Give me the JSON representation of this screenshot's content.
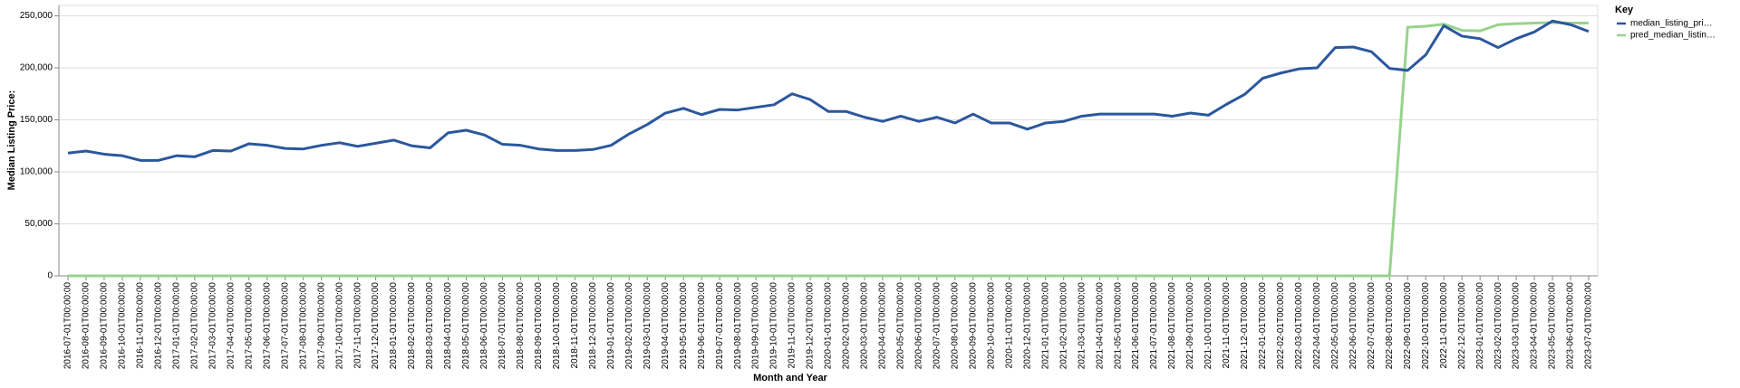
{
  "chart_data": {
    "type": "line",
    "xlabel": "Month and Year",
    "ylabel": "Median Listing Price:",
    "legend_title": "Key",
    "legend": "top-right",
    "grid": true,
    "categories": [
      "2016-07-01T00:00:00",
      "2016-08-01T00:00:00",
      "2016-09-01T00:00:00",
      "2016-10-01T00:00:00",
      "2016-11-01T00:00:00",
      "2016-12-01T00:00:00",
      "2017-01-01T00:00:00",
      "2017-02-01T00:00:00",
      "2017-03-01T00:00:00",
      "2017-04-01T00:00:00",
      "2017-05-01T00:00:00",
      "2017-06-01T00:00:00",
      "2017-07-01T00:00:00",
      "2017-08-01T00:00:00",
      "2017-09-01T00:00:00",
      "2017-10-01T00:00:00",
      "2017-11-01T00:00:00",
      "2017-12-01T00:00:00",
      "2018-01-01T00:00:00",
      "2018-02-01T00:00:00",
      "2018-03-01T00:00:00",
      "2018-04-01T00:00:00",
      "2018-05-01T00:00:00",
      "2018-06-01T00:00:00",
      "2018-07-01T00:00:00",
      "2018-08-01T00:00:00",
      "2018-09-01T00:00:00",
      "2018-10-01T00:00:00",
      "2018-11-01T00:00:00",
      "2018-12-01T00:00:00",
      "2019-01-01T00:00:00",
      "2019-02-01T00:00:00",
      "2019-03-01T00:00:00",
      "2019-04-01T00:00:00",
      "2019-05-01T00:00:00",
      "2019-06-01T00:00:00",
      "2019-07-01T00:00:00",
      "2019-08-01T00:00:00",
      "2019-09-01T00:00:00",
      "2019-10-01T00:00:00",
      "2019-11-01T00:00:00",
      "2019-12-01T00:00:00",
      "2020-01-01T00:00:00",
      "2020-02-01T00:00:00",
      "2020-03-01T00:00:00",
      "2020-04-01T00:00:00",
      "2020-05-01T00:00:00",
      "2020-06-01T00:00:00",
      "2020-07-01T00:00:00",
      "2020-08-01T00:00:00",
      "2020-09-01T00:00:00",
      "2020-10-01T00:00:00",
      "2020-11-01T00:00:00",
      "2020-12-01T00:00:00",
      "2021-01-01T00:00:00",
      "2021-02-01T00:00:00",
      "2021-03-01T00:00:00",
      "2021-04-01T00:00:00",
      "2021-05-01T00:00:00",
      "2021-06-01T00:00:00",
      "2021-07-01T00:00:00",
      "2021-08-01T00:00:00",
      "2021-09-01T00:00:00",
      "2021-10-01T00:00:00",
      "2021-11-01T00:00:00",
      "2021-12-01T00:00:00",
      "2022-01-01T00:00:00",
      "2022-02-01T00:00:00",
      "2022-03-01T00:00:00",
      "2022-04-01T00:00:00",
      "2022-05-01T00:00:00",
      "2022-06-01T00:00:00",
      "2022-07-01T00:00:00",
      "2022-08-01T00:00:00",
      "2022-09-01T00:00:00",
      "2022-10-01T00:00:00",
      "2022-11-01T00:00:00",
      "2022-12-01T00:00:00",
      "2023-01-01T00:00:00",
      "2023-02-01T00:00:00",
      "2023-03-01T00:00:00",
      "2023-04-01T00:00:00",
      "2023-05-01T00:00:00",
      "2023-06-01T00:00:00",
      "2023-07-01T00:00:00"
    ],
    "series": [
      {
        "name": "median_listing_pri…",
        "color": "#2b579d",
        "values": [
          118000,
          120000,
          117000,
          115500,
          111000,
          111000,
          115500,
          114500,
          120500,
          120000,
          127000,
          125500,
          122500,
          122000,
          125500,
          128000,
          124500,
          127500,
          130500,
          125000,
          123000,
          137500,
          140000,
          135500,
          126500,
          125500,
          122000,
          120500,
          120500,
          121500,
          125500,
          136500,
          145500,
          156500,
          161000,
          155000,
          160000,
          159500,
          162000,
          164500,
          175000,
          169500,
          158000,
          158000,
          152500,
          148500,
          153500,
          148500,
          152500,
          147000,
          155500,
          147000,
          147000,
          141000,
          147000,
          148500,
          153500,
          155500,
          155500,
          155500,
          155500,
          153500,
          156500,
          154500,
          165000,
          174500,
          190000,
          195000,
          199000,
          200000,
          219500,
          220000,
          215500,
          199500,
          197500,
          212500,
          240500,
          230500,
          228000,
          219500,
          228000,
          234500,
          245000,
          241500,
          235000
        ]
      },
      {
        "name": "pred_median_listin…",
        "color": "#98d38c",
        "values": [
          0,
          0,
          0,
          0,
          0,
          0,
          0,
          0,
          0,
          0,
          0,
          0,
          0,
          0,
          0,
          0,
          0,
          0,
          0,
          0,
          0,
          0,
          0,
          0,
          0,
          0,
          0,
          0,
          0,
          0,
          0,
          0,
          0,
          0,
          0,
          0,
          0,
          0,
          0,
          0,
          0,
          0,
          0,
          0,
          0,
          0,
          0,
          0,
          0,
          0,
          0,
          0,
          0,
          0,
          0,
          0,
          0,
          0,
          0,
          0,
          0,
          0,
          0,
          0,
          0,
          0,
          0,
          0,
          0,
          0,
          0,
          0,
          0,
          0,
          239000,
          240000,
          242000,
          236000,
          235500,
          241500,
          242500,
          243000,
          243500,
          243000,
          243000
        ]
      }
    ],
    "ylim": [
      0,
      260000
    ],
    "yticks": [
      0,
      {
        "value": 50000,
        "label": "50,000"
      },
      {
        "value": 100000,
        "label": "100,000"
      },
      {
        "value": 150000,
        "label": "150,000"
      },
      {
        "value": 200000,
        "label": "200,000"
      },
      {
        "value": 250000,
        "label": "250,000"
      }
    ]
  }
}
